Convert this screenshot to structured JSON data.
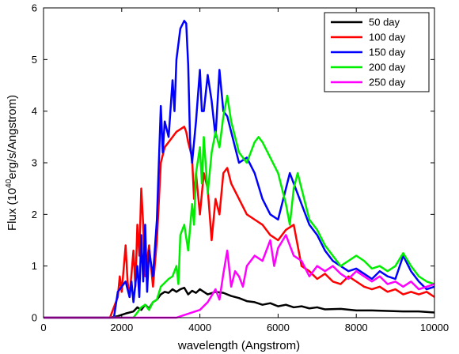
{
  "chart_data": {
    "type": "line",
    "xlabel": "wavelength (Angstrom)",
    "ylabel_parts": {
      "prefix": "Flux (10",
      "exponent": "40",
      "suffix": "erg/s/Angstrom)"
    },
    "xlim": [
      0,
      10000
    ],
    "ylim": [
      0,
      6
    ],
    "xticks": [
      0,
      2000,
      4000,
      6000,
      8000,
      10000
    ],
    "yticks": [
      0,
      1,
      2,
      3,
      4,
      5,
      6
    ],
    "grid": false,
    "legend_position": "top-right",
    "series": [
      {
        "name": "50 day",
        "color": "#000000",
        "points": [
          [
            0,
            0
          ],
          [
            1700,
            0
          ],
          [
            1900,
            0.03
          ],
          [
            2100,
            0.08
          ],
          [
            2300,
            0.12
          ],
          [
            2400,
            0.2
          ],
          [
            2500,
            0.15
          ],
          [
            2600,
            0.25
          ],
          [
            2700,
            0.18
          ],
          [
            2800,
            0.3
          ],
          [
            2900,
            0.35
          ],
          [
            3000,
            0.45
          ],
          [
            3100,
            0.5
          ],
          [
            3200,
            0.48
          ],
          [
            3300,
            0.55
          ],
          [
            3400,
            0.5
          ],
          [
            3500,
            0.55
          ],
          [
            3600,
            0.58
          ],
          [
            3700,
            0.45
          ],
          [
            3800,
            0.52
          ],
          [
            3900,
            0.48
          ],
          [
            4000,
            0.55
          ],
          [
            4200,
            0.45
          ],
          [
            4400,
            0.5
          ],
          [
            4600,
            0.48
          ],
          [
            4800,
            0.42
          ],
          [
            5000,
            0.38
          ],
          [
            5200,
            0.32
          ],
          [
            5400,
            0.3
          ],
          [
            5600,
            0.25
          ],
          [
            5800,
            0.28
          ],
          [
            6000,
            0.22
          ],
          [
            6200,
            0.25
          ],
          [
            6400,
            0.2
          ],
          [
            6600,
            0.22
          ],
          [
            6800,
            0.18
          ],
          [
            7000,
            0.2
          ],
          [
            7200,
            0.16
          ],
          [
            7600,
            0.17
          ],
          [
            8000,
            0.14
          ],
          [
            8400,
            0.14
          ],
          [
            8800,
            0.13
          ],
          [
            9200,
            0.12
          ],
          [
            9600,
            0.12
          ],
          [
            10000,
            0.1
          ]
        ]
      },
      {
        "name": "100 day",
        "color": "#ff0000",
        "points": [
          [
            0,
            0
          ],
          [
            1700,
            0
          ],
          [
            1900,
            0.4
          ],
          [
            1950,
            0.8
          ],
          [
            2000,
            0.5
          ],
          [
            2100,
            1.4
          ],
          [
            2150,
            0.7
          ],
          [
            2200,
            0.4
          ],
          [
            2300,
            1.3
          ],
          [
            2350,
            0.6
          ],
          [
            2400,
            1.8
          ],
          [
            2450,
            1.2
          ],
          [
            2500,
            2.5
          ],
          [
            2550,
            1.8
          ],
          [
            2600,
            0.8
          ],
          [
            2700,
            1.4
          ],
          [
            2800,
            0.6
          ],
          [
            2900,
            1.5
          ],
          [
            3000,
            3.0
          ],
          [
            3100,
            3.3
          ],
          [
            3200,
            3.4
          ],
          [
            3300,
            3.5
          ],
          [
            3400,
            3.6
          ],
          [
            3500,
            3.65
          ],
          [
            3600,
            3.7
          ],
          [
            3650,
            3.6
          ],
          [
            3700,
            3.4
          ],
          [
            3800,
            3.1
          ],
          [
            3850,
            2.3
          ],
          [
            3900,
            2.8
          ],
          [
            4000,
            2.0
          ],
          [
            4100,
            2.8
          ],
          [
            4200,
            2.5
          ],
          [
            4300,
            1.5
          ],
          [
            4400,
            2.3
          ],
          [
            4500,
            2.0
          ],
          [
            4600,
            2.8
          ],
          [
            4700,
            2.9
          ],
          [
            4800,
            2.6
          ],
          [
            5000,
            2.3
          ],
          [
            5200,
            2.0
          ],
          [
            5400,
            1.9
          ],
          [
            5600,
            1.8
          ],
          [
            5800,
            1.6
          ],
          [
            6000,
            1.5
          ],
          [
            6200,
            1.7
          ],
          [
            6400,
            1.8
          ],
          [
            6600,
            1.0
          ],
          [
            6800,
            0.9
          ],
          [
            7000,
            0.75
          ],
          [
            7200,
            0.85
          ],
          [
            7400,
            0.7
          ],
          [
            7600,
            0.65
          ],
          [
            7800,
            0.8
          ],
          [
            8000,
            0.7
          ],
          [
            8200,
            0.6
          ],
          [
            8400,
            0.55
          ],
          [
            8600,
            0.6
          ],
          [
            8800,
            0.5
          ],
          [
            9000,
            0.55
          ],
          [
            9200,
            0.45
          ],
          [
            9400,
            0.5
          ],
          [
            9600,
            0.45
          ],
          [
            9800,
            0.5
          ],
          [
            10000,
            0.4
          ]
        ]
      },
      {
        "name": "150 day",
        "color": "#0000ff",
        "points": [
          [
            0,
            0
          ],
          [
            1800,
            0
          ],
          [
            1900,
            0.5
          ],
          [
            2000,
            0.6
          ],
          [
            2100,
            0.7
          ],
          [
            2200,
            0.4
          ],
          [
            2250,
            0.7
          ],
          [
            2300,
            0.3
          ],
          [
            2400,
            1.0
          ],
          [
            2450,
            0.4
          ],
          [
            2500,
            1.6
          ],
          [
            2550,
            0.7
          ],
          [
            2600,
            1.8
          ],
          [
            2650,
            0.5
          ],
          [
            2700,
            1.3
          ],
          [
            2800,
            0.8
          ],
          [
            2900,
            1.9
          ],
          [
            3000,
            4.1
          ],
          [
            3050,
            3.2
          ],
          [
            3100,
            3.8
          ],
          [
            3200,
            3.5
          ],
          [
            3300,
            4.6
          ],
          [
            3350,
            4.0
          ],
          [
            3400,
            5.0
          ],
          [
            3500,
            5.6
          ],
          [
            3600,
            5.75
          ],
          [
            3650,
            5.7
          ],
          [
            3700,
            4.9
          ],
          [
            3750,
            3.4
          ],
          [
            3800,
            3.0
          ],
          [
            3900,
            3.8
          ],
          [
            4000,
            4.8
          ],
          [
            4050,
            4.0
          ],
          [
            4100,
            4.0
          ],
          [
            4200,
            4.7
          ],
          [
            4300,
            4.2
          ],
          [
            4400,
            3.5
          ],
          [
            4500,
            4.8
          ],
          [
            4600,
            4.0
          ],
          [
            4700,
            3.9
          ],
          [
            4800,
            3.6
          ],
          [
            5000,
            3.0
          ],
          [
            5200,
            3.1
          ],
          [
            5400,
            2.8
          ],
          [
            5600,
            2.3
          ],
          [
            5800,
            2.0
          ],
          [
            6000,
            1.9
          ],
          [
            6200,
            2.5
          ],
          [
            6300,
            2.8
          ],
          [
            6400,
            2.6
          ],
          [
            6600,
            2.2
          ],
          [
            6800,
            1.8
          ],
          [
            7000,
            1.6
          ],
          [
            7200,
            1.3
          ],
          [
            7400,
            1.1
          ],
          [
            7600,
            1.0
          ],
          [
            7800,
            0.9
          ],
          [
            8000,
            0.95
          ],
          [
            8200,
            0.85
          ],
          [
            8400,
            0.75
          ],
          [
            8600,
            0.9
          ],
          [
            8800,
            0.8
          ],
          [
            9000,
            0.75
          ],
          [
            9200,
            1.2
          ],
          [
            9400,
            0.9
          ],
          [
            9600,
            0.7
          ],
          [
            9800,
            0.55
          ],
          [
            10000,
            0.6
          ]
        ]
      },
      {
        "name": "200 day",
        "color": "#00ee00",
        "points": [
          [
            0,
            0
          ],
          [
            2300,
            0
          ],
          [
            2400,
            0.1
          ],
          [
            2500,
            0.2
          ],
          [
            2600,
            0.25
          ],
          [
            2700,
            0.15
          ],
          [
            2800,
            0.3
          ],
          [
            2900,
            0.35
          ],
          [
            3000,
            0.6
          ],
          [
            3200,
            0.75
          ],
          [
            3300,
            0.8
          ],
          [
            3400,
            1.0
          ],
          [
            3450,
            0.65
          ],
          [
            3500,
            1.6
          ],
          [
            3600,
            1.8
          ],
          [
            3700,
            1.3
          ],
          [
            3800,
            2.2
          ],
          [
            3850,
            1.8
          ],
          [
            3900,
            2.8
          ],
          [
            4000,
            3.3
          ],
          [
            4050,
            2.6
          ],
          [
            4100,
            3.5
          ],
          [
            4200,
            2.4
          ],
          [
            4300,
            3.2
          ],
          [
            4400,
            3.6
          ],
          [
            4500,
            3.3
          ],
          [
            4600,
            3.9
          ],
          [
            4700,
            4.3
          ],
          [
            4800,
            3.8
          ],
          [
            5000,
            3.2
          ],
          [
            5200,
            3.0
          ],
          [
            5400,
            3.4
          ],
          [
            5500,
            3.5
          ],
          [
            5600,
            3.4
          ],
          [
            5800,
            3.1
          ],
          [
            6000,
            2.8
          ],
          [
            6200,
            2.2
          ],
          [
            6300,
            1.8
          ],
          [
            6400,
            2.5
          ],
          [
            6500,
            2.8
          ],
          [
            6600,
            2.5
          ],
          [
            6800,
            1.9
          ],
          [
            7000,
            1.7
          ],
          [
            7200,
            1.4
          ],
          [
            7400,
            1.2
          ],
          [
            7600,
            1.0
          ],
          [
            7800,
            1.1
          ],
          [
            8000,
            1.2
          ],
          [
            8200,
            1.1
          ],
          [
            8400,
            0.95
          ],
          [
            8600,
            1.0
          ],
          [
            8800,
            0.9
          ],
          [
            9000,
            1.0
          ],
          [
            9200,
            1.25
          ],
          [
            9400,
            1.0
          ],
          [
            9600,
            0.8
          ],
          [
            9800,
            0.7
          ],
          [
            10000,
            0.65
          ]
        ]
      },
      {
        "name": "250 day",
        "color": "#ff00ff",
        "points": [
          [
            0,
            0
          ],
          [
            3400,
            0
          ],
          [
            3600,
            0.05
          ],
          [
            3800,
            0.1
          ],
          [
            4000,
            0.15
          ],
          [
            4200,
            0.3
          ],
          [
            4400,
            0.55
          ],
          [
            4500,
            0.35
          ],
          [
            4600,
            0.85
          ],
          [
            4700,
            1.3
          ],
          [
            4800,
            0.6
          ],
          [
            4900,
            0.9
          ],
          [
            5000,
            0.8
          ],
          [
            5100,
            0.6
          ],
          [
            5200,
            1.0
          ],
          [
            5400,
            1.2
          ],
          [
            5600,
            1.1
          ],
          [
            5800,
            1.5
          ],
          [
            5900,
            1.0
          ],
          [
            6000,
            1.35
          ],
          [
            6200,
            1.6
          ],
          [
            6400,
            1.2
          ],
          [
            6600,
            1.1
          ],
          [
            6800,
            0.8
          ],
          [
            7000,
            1.0
          ],
          [
            7200,
            0.9
          ],
          [
            7400,
            1.0
          ],
          [
            7600,
            0.85
          ],
          [
            7800,
            0.75
          ],
          [
            8000,
            0.9
          ],
          [
            8200,
            0.8
          ],
          [
            8400,
            0.7
          ],
          [
            8600,
            0.8
          ],
          [
            8800,
            0.65
          ],
          [
            9000,
            0.7
          ],
          [
            9200,
            0.6
          ],
          [
            9400,
            0.7
          ],
          [
            9600,
            0.55
          ],
          [
            9800,
            0.6
          ],
          [
            10000,
            0.65
          ]
        ]
      }
    ]
  }
}
